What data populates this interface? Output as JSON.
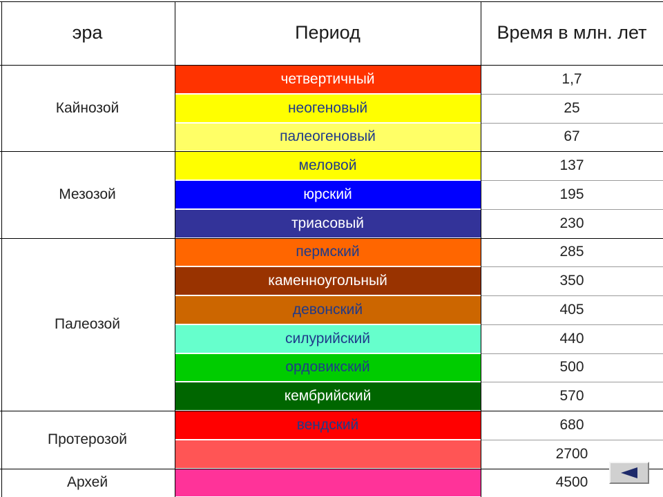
{
  "table": {
    "headers": {
      "era": "эра",
      "period": "Период",
      "time": "Время в млн. лет"
    },
    "eras": [
      {
        "name": "Кайнозой",
        "rows": 3
      },
      {
        "name": "Мезозой",
        "rows": 3
      },
      {
        "name": "Палеозой",
        "rows": 6
      },
      {
        "name": "Протерозой",
        "rows": 2
      },
      {
        "name": "Архей",
        "rows": 1
      }
    ],
    "rows": [
      {
        "period": "четвертичный",
        "time": "1,7",
        "color": "#ff3300",
        "text_color": "#ffffff"
      },
      {
        "period": "неогеновый",
        "time": "25",
        "color": "#ffff00",
        "text_color": "#1f3a8a"
      },
      {
        "period": "палеогеновый",
        "time": "67",
        "color": "#ffff66",
        "text_color": "#1f3a8a"
      },
      {
        "period": "меловой",
        "time": "137",
        "color": "#ffff00",
        "text_color": "#1f3a8a"
      },
      {
        "period": "юрский",
        "time": "195",
        "color": "#0000ff",
        "text_color": "#ffffff"
      },
      {
        "period": "триасовый",
        "time": "230",
        "color": "#333399",
        "text_color": "#ffffff"
      },
      {
        "period": "пермский",
        "time": "285",
        "color": "#ff6600",
        "text_color": "#1f3a8a"
      },
      {
        "period": "каменноугольный",
        "time": "350",
        "color": "#993300",
        "text_color": "#ffffff"
      },
      {
        "period": "девонский",
        "time": "405",
        "color": "#cc6600",
        "text_color": "#1f3a8a"
      },
      {
        "period": "силурийский",
        "time": "440",
        "color": "#66ffcc",
        "text_color": "#1f3a8a"
      },
      {
        "period": "ордовикский",
        "time": "500",
        "color": "#00cc00",
        "text_color": "#1f3a8a"
      },
      {
        "period": "кембрийский",
        "time": "570",
        "color": "#006600",
        "text_color": "#ffffff"
      },
      {
        "period": "вендский",
        "time": "680",
        "color": "#ff0000",
        "text_color": "#1f3a8a"
      },
      {
        "period": "",
        "time": "2700",
        "color": "#ff5555",
        "text_color": "#1f3a8a"
      },
      {
        "period": "",
        "time": "4500",
        "color": "#ff3399",
        "text_color": "#1f3a8a"
      }
    ]
  },
  "nav": {
    "back_icon": "triangle-left-icon",
    "back_color": "#1e2a6a"
  }
}
